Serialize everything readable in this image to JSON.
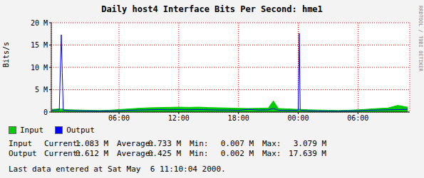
{
  "chart_data": {
    "type": "line",
    "title": "Daily host4 Interface Bits Per Second: hme1",
    "ylabel": "Bits/s",
    "x": [
      -0.75,
      0,
      0.2,
      0.3,
      0.4,
      1,
      2,
      3,
      4,
      5,
      6,
      7,
      8,
      9,
      10,
      11,
      12,
      13,
      14,
      15,
      16,
      17,
      18,
      19,
      20,
      21,
      21.5,
      22,
      23,
      24,
      24.1,
      24.2,
      25,
      26,
      27,
      28,
      29,
      30,
      31,
      32,
      33,
      34,
      35
    ],
    "series": [
      {
        "name": "Input",
        "type": "area",
        "color": "#00cc00",
        "values": [
          600000,
          700000,
          650000,
          700000,
          600000,
          500000,
          450000,
          400000,
          350000,
          400000,
          550000,
          700000,
          850000,
          950000,
          1000000,
          1050000,
          1100000,
          1050000,
          1100000,
          1000000,
          950000,
          900000,
          850000,
          800000,
          850000,
          900000,
          2500000,
          800000,
          700000,
          600000,
          650000,
          600000,
          500000,
          450000,
          400000,
          350000,
          400000,
          500000,
          650000,
          800000,
          900000,
          1500000,
          1083000
        ]
      },
      {
        "name": "Output",
        "type": "line",
        "color": "#0000ff",
        "values": [
          400000,
          500000,
          17300000,
          8800000,
          400000,
          350000,
          300000,
          250000,
          200000,
          250000,
          300000,
          400000,
          450000,
          500000,
          550000,
          500000,
          550000,
          500000,
          550000,
          500000,
          450000,
          450000,
          400000,
          600000,
          450000,
          500000,
          800000,
          400000,
          350000,
          400000,
          17639000,
          400000,
          300000,
          250000,
          200000,
          200000,
          250000,
          300000,
          400000,
          450000,
          500000,
          550000,
          612000
        ]
      }
    ],
    "xlim": [
      -0.8,
      35.2
    ],
    "xticks": [
      {
        "value": 6,
        "label": "06:00"
      },
      {
        "value": 12,
        "label": "12:00"
      },
      {
        "value": 18,
        "label": "18:00"
      },
      {
        "value": 24,
        "label": "00:00"
      },
      {
        "value": 30,
        "label": "06:00"
      }
    ],
    "ylim": [
      0,
      20000000
    ],
    "yticks": [
      0,
      {
        "value": 5000000,
        "label": "5 M"
      },
      {
        "value": 10000000,
        "label": "10 M"
      },
      {
        "value": 15000000,
        "label": "15 M"
      },
      {
        "value": 20000000,
        "label": "20 M"
      }
    ],
    "grid": true,
    "legend": "bottom-left"
  },
  "stats": {
    "labels": [
      "Current:",
      "Average:",
      "Min:",
      "Max:"
    ],
    "rows": [
      {
        "name": "Input",
        "values": [
          "1.083 M",
          "0.733 M",
          "0.007 M",
          "3.079 M"
        ]
      },
      {
        "name": "Output",
        "values": [
          "0.612 M",
          "0.425 M",
          "0.002 M",
          "17.639 M"
        ]
      }
    ]
  },
  "footer": "Last data entered at Sat May  6 11:10:04 2000.",
  "watermark": "RRDTOOL / TOBI OETIKER"
}
